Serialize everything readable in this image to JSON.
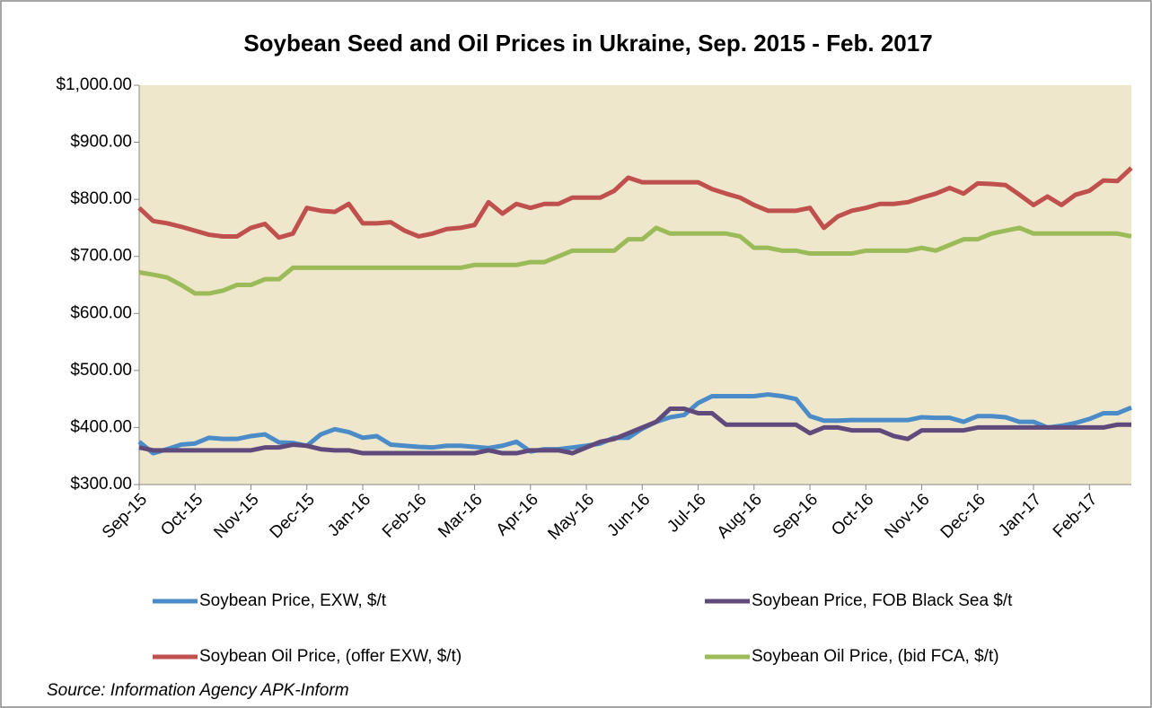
{
  "chart_data": {
    "type": "line",
    "title": "Soybean Seed and Oil Prices in Ukraine, Sep. 2015 - Feb. 2017",
    "source": "Source:  Information Agency  APK-Inform",
    "categories": [
      "Sep-15",
      null,
      null,
      null,
      "Oct-15",
      null,
      null,
      null,
      "Nov-15",
      null,
      null,
      null,
      "Dec-15",
      null,
      null,
      null,
      "Jan-16",
      null,
      null,
      null,
      "Feb-16",
      null,
      null,
      null,
      "Mar-16",
      null,
      null,
      null,
      "Apr-16",
      null,
      null,
      null,
      "May-16",
      null,
      null,
      null,
      "Jun-16",
      null,
      null,
      null,
      "Jul-16",
      null,
      null,
      null,
      "Aug-16",
      null,
      null,
      null,
      "Sep-16",
      null,
      null,
      null,
      "Oct-16",
      null,
      null,
      null,
      "Nov-16",
      null,
      null,
      null,
      "Dec-16",
      null,
      null,
      null,
      "Jan-17",
      null,
      null,
      null,
      "Feb-17",
      null,
      null,
      null
    ],
    "ylim": [
      300,
      1000
    ],
    "yticks": [
      {
        "value": 300,
        "label": "$300.00"
      },
      {
        "value": 400,
        "label": "$400.00"
      },
      {
        "value": 500,
        "label": "$500.00"
      },
      {
        "value": 600,
        "label": "$600.00"
      },
      {
        "value": 700,
        "label": "$700.00"
      },
      {
        "value": 800,
        "label": "$800.00"
      },
      {
        "value": 900,
        "label": "$900.00"
      },
      {
        "value": 1000,
        "label": "$1,000.00"
      }
    ],
    "grid": false,
    "legend": "bottom",
    "background": "#eee7cc",
    "series": [
      {
        "name": "Soybean Price, EXW, $/t",
        "color": "#4a8bc8",
        "values": [
          375,
          355,
          362,
          370,
          372,
          382,
          380,
          380,
          385,
          388,
          374,
          373,
          368,
          388,
          397,
          392,
          382,
          385,
          370,
          368,
          366,
          365,
          368,
          368,
          366,
          364,
          368,
          375,
          358,
          362,
          362,
          365,
          368,
          372,
          382,
          382,
          398,
          410,
          418,
          422,
          443,
          455,
          455,
          455,
          455,
          458,
          455,
          450,
          420,
          412,
          412,
          413,
          413,
          413,
          413,
          413,
          418,
          417,
          417,
          410,
          420,
          420,
          418,
          410,
          410,
          400,
          403,
          408,
          415,
          425,
          425,
          435
        ]
      },
      {
        "name": "Soybean Price, FOB Black Sea $/t",
        "color": "#604a7b",
        "values": [
          365,
          360,
          360,
          360,
          360,
          360,
          360,
          360,
          360,
          365,
          365,
          370,
          368,
          362,
          360,
          360,
          355,
          355,
          355,
          355,
          355,
          355,
          355,
          355,
          355,
          360,
          355,
          355,
          360,
          360,
          360,
          355,
          365,
          375,
          380,
          390,
          400,
          410,
          433,
          433,
          425,
          425,
          405,
          405,
          405,
          405,
          405,
          405,
          390,
          400,
          400,
          395,
          395,
          395,
          385,
          380,
          395,
          395,
          395,
          395,
          400,
          400,
          400,
          400,
          400,
          400,
          400,
          400,
          400,
          400,
          405,
          405
        ]
      },
      {
        "name": "Soybean Oil Price, (offer EXW, $/t)",
        "color": "#c0504d",
        "values": [
          785,
          762,
          758,
          752,
          745,
          738,
          735,
          735,
          750,
          757,
          733,
          740,
          785,
          780,
          778,
          792,
          758,
          758,
          760,
          745,
          735,
          740,
          748,
          750,
          755,
          795,
          775,
          792,
          785,
          792,
          792,
          803,
          803,
          803,
          815,
          838,
          830,
          830,
          830,
          830,
          830,
          818,
          810,
          803,
          790,
          780,
          780,
          780,
          785,
          750,
          770,
          780,
          785,
          792,
          792,
          795,
          803,
          810,
          820,
          810,
          828,
          827,
          825,
          808,
          790,
          805,
          790,
          808,
          815,
          833,
          832,
          855
        ]
      },
      {
        "name": "Soybean Oil Price, (bid FCA, $/t)",
        "color": "#9bbb59",
        "values": [
          672,
          668,
          663,
          650,
          635,
          635,
          640,
          650,
          650,
          660,
          660,
          680,
          680,
          680,
          680,
          680,
          680,
          680,
          680,
          680,
          680,
          680,
          680,
          680,
          685,
          685,
          685,
          685,
          690,
          690,
          700,
          710,
          710,
          710,
          710,
          730,
          730,
          750,
          740,
          740,
          740,
          740,
          740,
          735,
          715,
          715,
          710,
          710,
          705,
          705,
          705,
          705,
          710,
          710,
          710,
          710,
          715,
          710,
          720,
          730,
          730,
          740,
          745,
          750,
          740,
          740,
          740,
          740,
          740,
          740,
          740,
          735
        ]
      }
    ]
  }
}
